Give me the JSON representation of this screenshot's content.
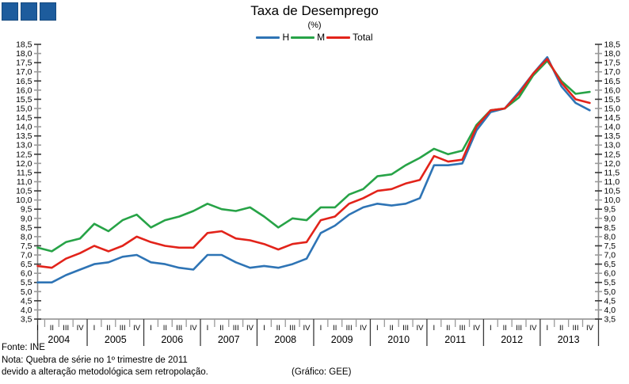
{
  "header": {
    "title": "Taxa de Desemprego",
    "subtitle": "(%)"
  },
  "footer": {
    "source": "Fonte: INE",
    "note_line1": "Nota: Quebra de série no 1º trimestre de 2011",
    "note_line2": "devido a alteração metodológica sem retropolação.",
    "credit": "(Gráfico: GEE)"
  },
  "chart_data": {
    "type": "line",
    "title": "Taxa de Desemprego",
    "subtitle": "(%)",
    "ylabel": "",
    "xlabel": "",
    "ylim": [
      3.5,
      18.5
    ],
    "ytick_step": 0.5,
    "grid": false,
    "legend_position": "top-center",
    "years": [
      2004,
      2005,
      2006,
      2007,
      2008,
      2009,
      2010,
      2011,
      2012,
      2013
    ],
    "quarter_labels": [
      "I",
      "II",
      "III",
      "IV"
    ],
    "axis_color": "#8a8a8a",
    "tick_color_major": "#3a3a3a",
    "tick_color_minor": "#9a9a9a",
    "series": [
      {
        "name": "H",
        "color": "#2e74b5",
        "values": [
          5.5,
          5.5,
          5.9,
          6.2,
          6.5,
          6.6,
          6.9,
          7.0,
          6.6,
          6.5,
          6.3,
          6.2,
          7.0,
          7.0,
          6.6,
          6.3,
          6.4,
          6.3,
          6.5,
          6.8,
          8.2,
          8.6,
          9.2,
          9.6,
          9.8,
          9.7,
          9.8,
          10.1,
          11.9,
          11.9,
          12.0,
          13.8,
          14.8,
          15.0,
          15.9,
          16.9,
          17.8,
          16.2,
          15.3,
          14.9
        ]
      },
      {
        "name": "M",
        "color": "#27a347",
        "values": [
          7.4,
          7.2,
          7.7,
          7.9,
          8.7,
          8.3,
          8.9,
          9.2,
          8.5,
          8.9,
          9.1,
          9.4,
          9.8,
          9.5,
          9.4,
          9.6,
          9.1,
          8.5,
          9.0,
          8.9,
          9.6,
          9.6,
          10.3,
          10.6,
          11.3,
          11.4,
          11.9,
          12.3,
          12.8,
          12.5,
          12.7,
          14.1,
          14.9,
          15.0,
          15.6,
          16.8,
          17.6,
          16.5,
          15.8,
          15.9
        ]
      },
      {
        "name": "Total",
        "color": "#e2231a",
        "values": [
          6.4,
          6.3,
          6.8,
          7.1,
          7.5,
          7.2,
          7.5,
          8.0,
          7.7,
          7.5,
          7.4,
          7.4,
          8.2,
          8.3,
          7.9,
          7.8,
          7.6,
          7.3,
          7.6,
          7.7,
          8.9,
          9.1,
          9.8,
          10.1,
          10.5,
          10.6,
          10.9,
          11.1,
          12.4,
          12.1,
          12.2,
          14.0,
          14.9,
          15.0,
          15.8,
          16.9,
          17.7,
          16.4,
          15.5,
          15.3
        ]
      }
    ]
  }
}
